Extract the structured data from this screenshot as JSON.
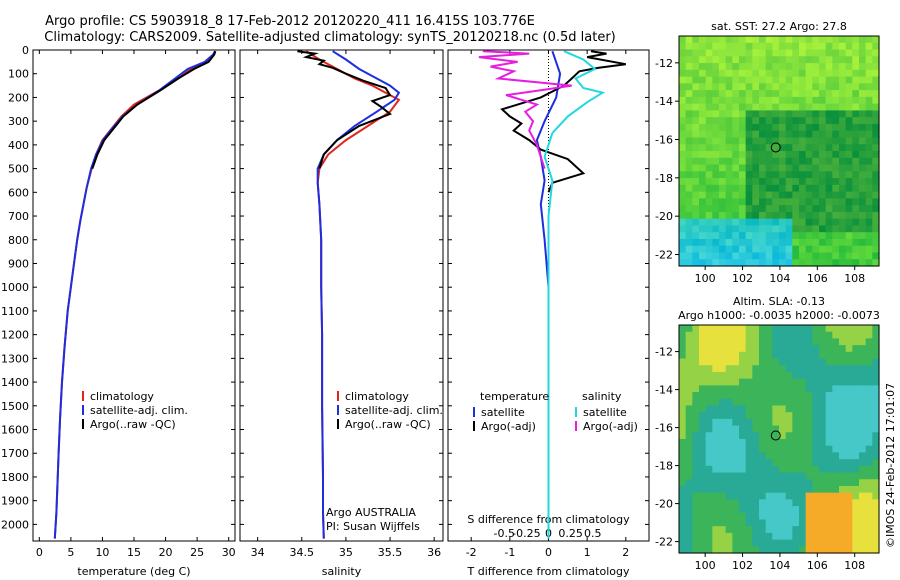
{
  "header": {
    "line1": "Argo profile: CS 5903918_8 17-Feb-2012 20120220_411 16.415S 103.776E",
    "line2": "Climatology: CARS2009. Satellite-adjusted climatology: synTS_20120218.nc (0.5d later)"
  },
  "watermark": "©IMOS 24-Feb-2012 17:01:07",
  "depth_ticks": [
    0,
    100,
    200,
    300,
    400,
    500,
    600,
    700,
    800,
    900,
    1000,
    1100,
    1200,
    1300,
    1400,
    1500,
    1600,
    1700,
    1800,
    1900,
    2000
  ],
  "colors": {
    "climatology": "#e0261c",
    "satellite": "#1c2ee0",
    "argo": "#000000",
    "sat_salinity": "#22d8e0",
    "argo_salinity": "#e61ee0"
  },
  "chart_data": [
    {
      "type": "line",
      "panel": "temperature",
      "xlabel": "temperature (deg C)",
      "xlim": [
        -1,
        31
      ],
      "xticks": [
        0,
        5,
        10,
        15,
        20,
        25,
        30
      ],
      "ylim": [
        2070,
        0
      ],
      "legend": [
        "climatology",
        "satellite-adj. clim.",
        "Argo(..raw -QC)"
      ],
      "series": [
        {
          "name": "climatology",
          "color": "#e0261c",
          "x": [
            27.8,
            27.6,
            26.5,
            24,
            22,
            19,
            15,
            13,
            11.5,
            10,
            9,
            8.3,
            7.5,
            7,
            6.5,
            6,
            5.5,
            4.5,
            4,
            3.6,
            3.3,
            3.05,
            2.85,
            2.7,
            2.55,
            2.45
          ],
          "y": [
            5,
            20,
            50,
            80,
            120,
            170,
            230,
            280,
            330,
            380,
            440,
            500,
            580,
            650,
            720,
            800,
            900,
            1100,
            1250,
            1400,
            1550,
            1700,
            1850,
            1950,
            2020,
            2060
          ]
        },
        {
          "name": "satellite-adj. clim.",
          "color": "#1c2ee0",
          "x": [
            27.9,
            27.5,
            26.2,
            23.5,
            21.5,
            19,
            15.5,
            13.2,
            11.6,
            10.1,
            9,
            8.2,
            7.5,
            7,
            6.5,
            6,
            5.5,
            4.5,
            4,
            3.6,
            3.3,
            3.05,
            2.85,
            2.7,
            2.55,
            2.45
          ],
          "y": [
            5,
            20,
            50,
            80,
            120,
            170,
            230,
            280,
            330,
            380,
            440,
            500,
            580,
            650,
            720,
            800,
            900,
            1100,
            1250,
            1400,
            1550,
            1700,
            1850,
            1950,
            2020,
            2060
          ]
        },
        {
          "name": "Argo(..raw -QC)",
          "color": "#000000",
          "x": [
            27.9,
            27.7,
            26.8,
            24.5,
            22,
            19.2,
            15.5,
            13.3,
            11.8,
            10.3,
            9.2,
            8.4
          ],
          "y": [
            5,
            20,
            50,
            80,
            120,
            170,
            230,
            280,
            330,
            380,
            440,
            500
          ]
        }
      ]
    },
    {
      "type": "line",
      "panel": "salinity",
      "xlabel": "salinity",
      "xlim": [
        33.8,
        36.1
      ],
      "xticks": [
        34,
        34.5,
        35,
        35.5,
        36
      ],
      "ylim": [
        2070,
        0
      ],
      "legend": [
        "climatology",
        "satellite-adj. clim.",
        "Argo(..raw -QC)"
      ],
      "annotation": [
        "Argo AUSTRALIA",
        "PI: Susan Wijffels"
      ],
      "series": [
        {
          "name": "climatology",
          "color": "#e0261c",
          "x": [
            34.55,
            34.7,
            34.9,
            35.1,
            35.3,
            35.45,
            35.6,
            35.5,
            35.25,
            35.0,
            34.8,
            34.7,
            34.68,
            34.7,
            34.72,
            34.72,
            34.73,
            34.73,
            34.74,
            34.74,
            34.75
          ],
          "y": [
            5,
            40,
            80,
            120,
            150,
            180,
            210,
            260,
            320,
            380,
            440,
            500,
            560,
            650,
            800,
            1000,
            1200,
            1500,
            1800,
            1950,
            2060
          ]
        },
        {
          "name": "satellite-adj. clim.",
          "color": "#1c2ee0",
          "x": [
            34.85,
            35.0,
            35.15,
            35.35,
            35.5,
            35.6,
            35.55,
            35.35,
            35.1,
            34.9,
            34.75,
            34.68,
            34.68,
            34.7,
            34.72,
            34.72,
            34.73,
            34.73,
            34.74,
            34.74,
            34.75
          ],
          "y": [
            5,
            40,
            80,
            120,
            150,
            180,
            210,
            260,
            320,
            380,
            440,
            500,
            560,
            650,
            800,
            1000,
            1200,
            1500,
            1800,
            1950,
            2060
          ]
        },
        {
          "name": "Argo(..raw -QC)",
          "color": "#000000",
          "x": [
            34.45,
            34.65,
            34.55,
            34.75,
            34.7,
            34.85,
            35.0,
            35.2,
            35.45,
            35.5,
            35.3,
            35.4,
            35.5,
            35.15,
            34.9,
            34.75,
            34.7
          ],
          "y": [
            5,
            15,
            30,
            45,
            60,
            75,
            100,
            130,
            160,
            190,
            215,
            240,
            270,
            320,
            380,
            440,
            500
          ]
        }
      ]
    },
    {
      "type": "line",
      "panel": "difference",
      "xlabel": "T difference from climatology",
      "xlabel_top": "S difference from climatology",
      "xlim": [
        -2.6,
        2.6
      ],
      "xticks": [
        -2,
        -1,
        0,
        1,
        2
      ],
      "xticks_top": [
        "-0.5",
        "-0.25",
        "0",
        "0.25",
        "0.5"
      ],
      "ylim": [
        2070,
        0
      ],
      "legend_titles": [
        "temperature",
        "salinity"
      ],
      "legend": [
        "satellite",
        "Argo(-adj)",
        "satellite",
        "Argo(-adj)"
      ],
      "series": [
        {
          "name": "temperature satellite",
          "color": "#1c2ee0",
          "x": [
            0.1,
            0.3,
            0.2,
            -0.1,
            -0.3,
            -0.2,
            -0.1,
            -0.2,
            -0.1,
            0,
            0,
            0
          ],
          "y": [
            5,
            100,
            200,
            300,
            380,
            450,
            550,
            650,
            800,
            1000,
            1500,
            2060
          ]
        },
        {
          "name": "temperature Argo(-adj)",
          "color": "#000000",
          "x": [
            1.1,
            1.5,
            1.0,
            2.0,
            1.3,
            0.8,
            0.6,
            0.4,
            -0.2,
            -0.8,
            -1.2,
            -1.0,
            -0.7,
            -0.9,
            -0.5,
            -0.2,
            0.5,
            0.9,
            0.1,
            0
          ],
          "y": [
            5,
            15,
            30,
            60,
            75,
            90,
            120,
            150,
            200,
            230,
            250,
            280,
            310,
            340,
            380,
            420,
            460,
            520,
            560,
            600
          ]
        },
        {
          "name": "salinity satellite",
          "color": "#22d8e0",
          "x": [
            0.4,
            0.9,
            1.2,
            0.7,
            0.9,
            1.4,
            1.0,
            0.5,
            0.1,
            -0.1,
            0.1,
            0,
            0,
            0
          ],
          "y": [
            5,
            40,
            80,
            120,
            160,
            180,
            220,
            280,
            350,
            450,
            550,
            700,
            1000,
            2060
          ]
        },
        {
          "name": "salinity Argo(-adj)",
          "color": "#e61ee0",
          "x": [
            -1.7,
            -0.5,
            -1.8,
            -0.8,
            -1.5,
            -0.9,
            -1.3,
            0.6,
            -0.2,
            -1.1,
            -0.3,
            -0.6,
            -0.4,
            -0.5,
            -0.3,
            -0.1
          ],
          "y": [
            5,
            15,
            30,
            50,
            70,
            90,
            120,
            150,
            170,
            190,
            230,
            260,
            300,
            340,
            400,
            500
          ]
        }
      ]
    }
  ],
  "maps": [
    {
      "title_lines": [
        "sat. SST: 27.2  Argo: 27.8"
      ],
      "lon_ticks": [
        100,
        102,
        104,
        106,
        108
      ],
      "lat_ticks": [
        -12,
        -14,
        -16,
        -18,
        -20,
        -22
      ],
      "lon_range": [
        98.6,
        109.3
      ],
      "lat_range": [
        -22.6,
        -10.6
      ],
      "marker": {
        "lon": 103.776,
        "lat": -16.415
      }
    },
    {
      "title_lines": [
        "Altim. SLA: -0.13",
        "Argo h1000: -0.0035 h2000: -0.0073"
      ],
      "lon_ticks": [
        100,
        102,
        104,
        106,
        108
      ],
      "lat_ticks": [
        -12,
        -14,
        -16,
        -18,
        -20,
        -22
      ],
      "lon_range": [
        98.6,
        109.3
      ],
      "lat_range": [
        -22.6,
        -10.6
      ],
      "marker": {
        "lon": 103.776,
        "lat": -16.415
      }
    }
  ]
}
